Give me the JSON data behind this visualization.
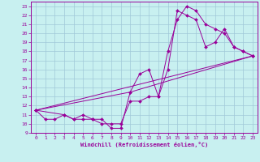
{
  "xlabel": "Windchill (Refroidissement éolien,°C)",
  "bg_color": "#c8f0f0",
  "line_color": "#990099",
  "xlim": [
    -0.5,
    23.5
  ],
  "ylim": [
    9,
    23.5
  ],
  "xticks": [
    0,
    1,
    2,
    3,
    4,
    5,
    6,
    7,
    8,
    9,
    10,
    11,
    12,
    13,
    14,
    15,
    16,
    17,
    18,
    19,
    20,
    21,
    22,
    23
  ],
  "yticks": [
    9,
    10,
    11,
    12,
    13,
    14,
    15,
    16,
    17,
    18,
    19,
    20,
    21,
    22,
    23
  ],
  "series": [
    {
      "x": [
        0,
        1,
        2,
        3,
        4,
        5,
        6,
        7,
        8,
        9,
        10,
        11,
        12,
        13,
        14,
        15,
        16,
        17,
        18,
        19,
        20,
        21,
        22,
        23
      ],
      "y": [
        11.5,
        10.5,
        10.5,
        11,
        10.5,
        10.5,
        10.5,
        10.5,
        9.5,
        9.5,
        13.5,
        15.5,
        16,
        13,
        18,
        21.5,
        23,
        22.5,
        21,
        20.5,
        20,
        18.5,
        18,
        17.5
      ]
    },
    {
      "x": [
        0,
        3,
        4,
        5,
        6,
        7,
        8,
        9,
        10,
        11,
        12,
        13,
        14,
        15,
        16,
        17,
        18,
        19,
        20,
        21,
        22,
        23
      ],
      "y": [
        11.5,
        11,
        10.5,
        11,
        10.5,
        10,
        10,
        10,
        12.5,
        12.5,
        13,
        13,
        16,
        22.5,
        22,
        21.5,
        18.5,
        19,
        20.5,
        18.5,
        18,
        17.5
      ]
    },
    {
      "x": [
        0,
        23
      ],
      "y": [
        11.5,
        17.5
      ]
    },
    {
      "x": [
        0,
        10,
        23
      ],
      "y": [
        11.5,
        13.5,
        17.5
      ]
    }
  ]
}
